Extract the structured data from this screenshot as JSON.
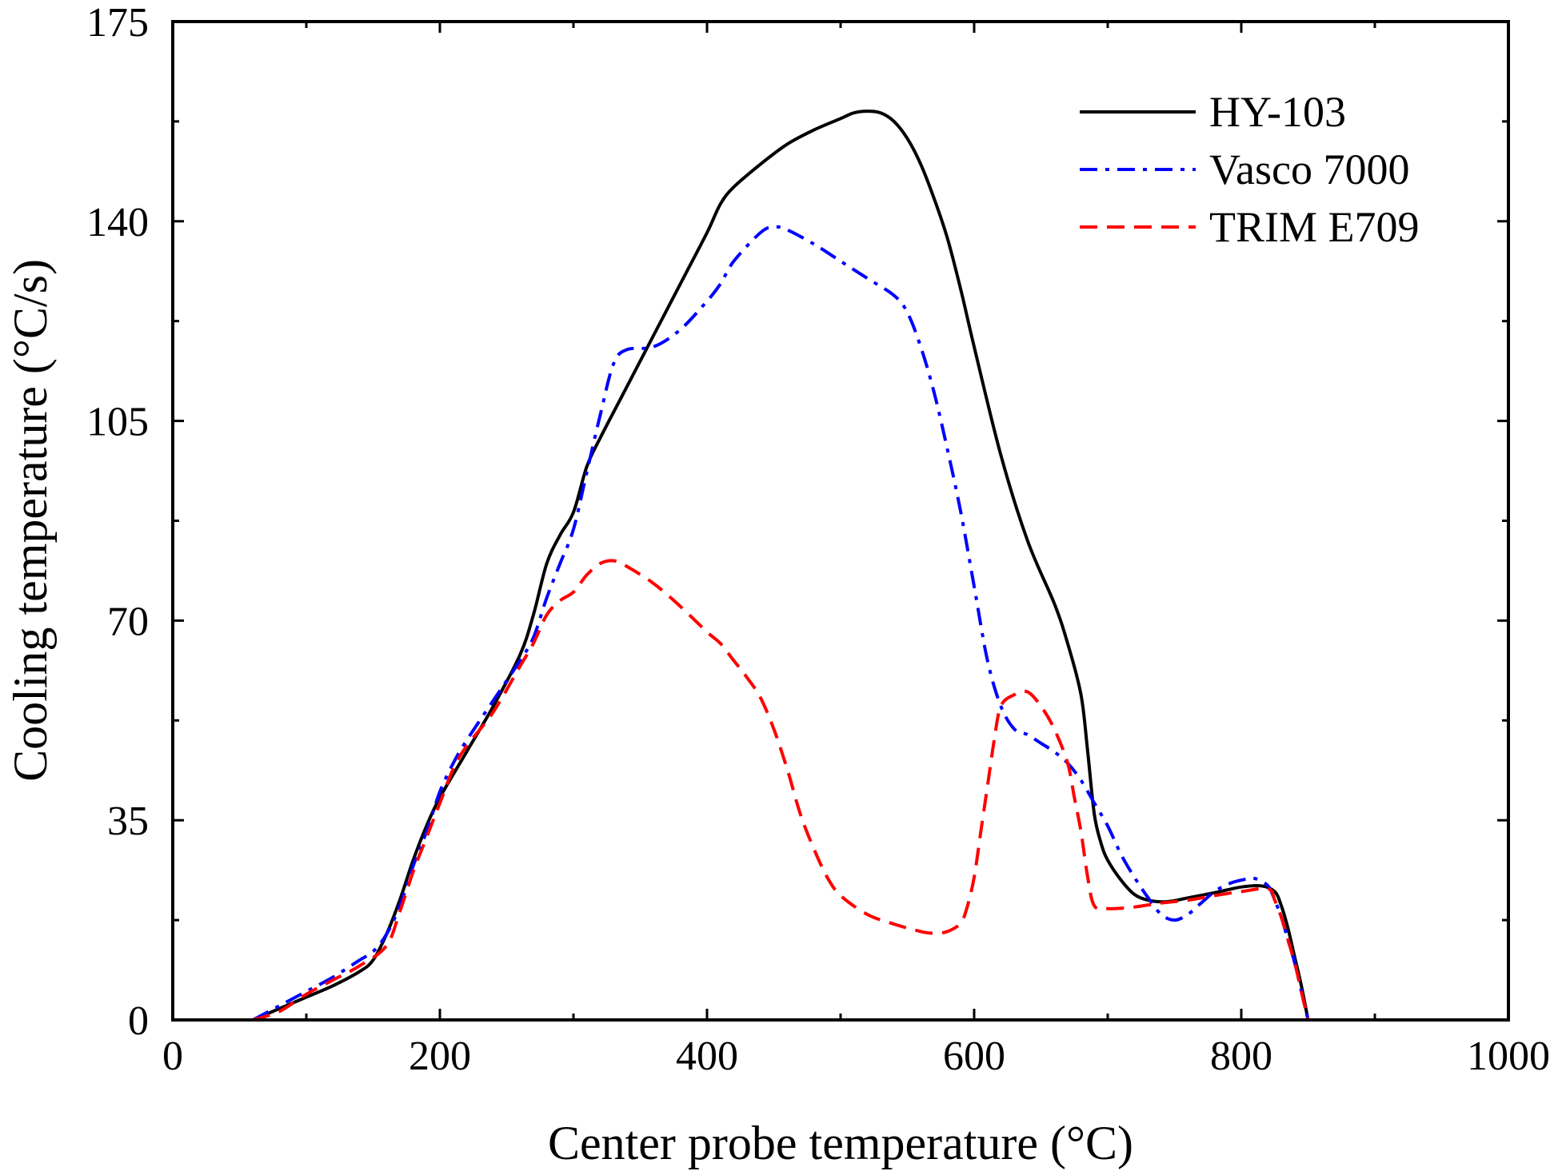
{
  "chart_data": {
    "type": "line",
    "title": "",
    "xlabel": "Center probe temperature  (°C)",
    "ylabel": "Cooling temperature  (°C/s)",
    "xlim": [
      0,
      1000
    ],
    "ylim": [
      0,
      175
    ],
    "xticks": [
      0,
      200,
      400,
      600,
      800,
      1000
    ],
    "yticks": [
      0,
      35,
      70,
      105,
      140,
      175
    ],
    "xtick_labels": [
      "0",
      "200",
      "400",
      "600",
      "800",
      "1000"
    ],
    "ytick_labels": [
      "0",
      "35",
      "70",
      "105",
      "140",
      "175"
    ],
    "grid": false,
    "legend_position": "top-right",
    "series": [
      {
        "name": "HY-103",
        "color": "#000000",
        "style": "solid",
        "points": [
          [
            60,
            0
          ],
          [
            80,
            2
          ],
          [
            100,
            4
          ],
          [
            120,
            6
          ],
          [
            140,
            8.5
          ],
          [
            150,
            10.5
          ],
          [
            160,
            15
          ],
          [
            170,
            21
          ],
          [
            180,
            28
          ],
          [
            190,
            34
          ],
          [
            200,
            39
          ],
          [
            220,
            47
          ],
          [
            240,
            55
          ],
          [
            260,
            64
          ],
          [
            270,
            71
          ],
          [
            280,
            80
          ],
          [
            290,
            85
          ],
          [
            300,
            89
          ],
          [
            310,
            97
          ],
          [
            320,
            102
          ],
          [
            340,
            111
          ],
          [
            360,
            120
          ],
          [
            380,
            129
          ],
          [
            400,
            138
          ],
          [
            410,
            143
          ],
          [
            420,
            146
          ],
          [
            440,
            150
          ],
          [
            460,
            153.5
          ],
          [
            480,
            156
          ],
          [
            500,
            158
          ],
          [
            510,
            159
          ],
          [
            520,
            159.3
          ],
          [
            530,
            159
          ],
          [
            540,
            157.5
          ],
          [
            550,
            154.5
          ],
          [
            560,
            150
          ],
          [
            570,
            144
          ],
          [
            580,
            137
          ],
          [
            590,
            128
          ],
          [
            600,
            118
          ],
          [
            620,
            99
          ],
          [
            640,
            84
          ],
          [
            660,
            73
          ],
          [
            670,
            66
          ],
          [
            680,
            57
          ],
          [
            685,
            47
          ],
          [
            690,
            36
          ],
          [
            695,
            31
          ],
          [
            700,
            28
          ],
          [
            710,
            24.5
          ],
          [
            720,
            22
          ],
          [
            730,
            21
          ],
          [
            740,
            20.7
          ],
          [
            750,
            20.9
          ],
          [
            760,
            21.4
          ],
          [
            780,
            22.3
          ],
          [
            800,
            23.3
          ],
          [
            815,
            23.5
          ],
          [
            825,
            22.5
          ],
          [
            830,
            20
          ],
          [
            835,
            16
          ],
          [
            840,
            11
          ],
          [
            845,
            6
          ],
          [
            850,
            0
          ]
        ]
      },
      {
        "name": "Vasco 7000",
        "color": "#0000ff",
        "style": "dashdot",
        "points": [
          [
            60,
            0
          ],
          [
            80,
            2.5
          ],
          [
            100,
            5
          ],
          [
            120,
            7.5
          ],
          [
            140,
            10.5
          ],
          [
            150,
            12
          ],
          [
            160,
            15
          ],
          [
            170,
            20
          ],
          [
            180,
            27
          ],
          [
            190,
            33
          ],
          [
            200,
            40
          ],
          [
            210,
            45
          ],
          [
            220,
            49
          ],
          [
            240,
            56
          ],
          [
            260,
            63
          ],
          [
            270,
            67
          ],
          [
            280,
            74
          ],
          [
            290,
            80
          ],
          [
            300,
            86
          ],
          [
            310,
            96
          ],
          [
            320,
            106
          ],
          [
            330,
            115
          ],
          [
            340,
            117.5
          ],
          [
            360,
            118
          ],
          [
            380,
            121
          ],
          [
            400,
            126
          ],
          [
            410,
            129
          ],
          [
            420,
            133
          ],
          [
            440,
            138
          ],
          [
            450,
            139
          ],
          [
            460,
            138.5
          ],
          [
            480,
            136
          ],
          [
            500,
            133
          ],
          [
            520,
            130
          ],
          [
            540,
            127
          ],
          [
            550,
            124
          ],
          [
            560,
            118
          ],
          [
            570,
            110
          ],
          [
            580,
            100
          ],
          [
            590,
            89
          ],
          [
            600,
            76
          ],
          [
            610,
            63
          ],
          [
            620,
            55
          ],
          [
            630,
            51
          ],
          [
            640,
            50
          ],
          [
            650,
            48.5
          ],
          [
            660,
            47
          ],
          [
            670,
            45
          ],
          [
            680,
            42
          ],
          [
            690,
            38
          ],
          [
            700,
            34
          ],
          [
            710,
            29
          ],
          [
            720,
            25
          ],
          [
            730,
            21.5
          ],
          [
            740,
            18.5
          ],
          [
            750,
            17.5
          ],
          [
            760,
            18.5
          ],
          [
            770,
            20.5
          ],
          [
            780,
            22.5
          ],
          [
            790,
            23.8
          ],
          [
            800,
            24.5
          ],
          [
            810,
            24.8
          ],
          [
            820,
            23.5
          ],
          [
            825,
            21
          ],
          [
            830,
            18
          ],
          [
            835,
            14
          ],
          [
            840,
            10
          ],
          [
            845,
            5
          ],
          [
            850,
            0
          ]
        ]
      },
      {
        "name": "TRIM E709",
        "color": "#ff0000",
        "style": "dashed",
        "points": [
          [
            60,
            0
          ],
          [
            80,
            1.5
          ],
          [
            100,
            4.5
          ],
          [
            120,
            7
          ],
          [
            140,
            9.5
          ],
          [
            160,
            13
          ],
          [
            170,
            19
          ],
          [
            180,
            26
          ],
          [
            190,
            32
          ],
          [
            200,
            38
          ],
          [
            210,
            44
          ],
          [
            220,
            48
          ],
          [
            240,
            54
          ],
          [
            260,
            62
          ],
          [
            270,
            66
          ],
          [
            280,
            71
          ],
          [
            290,
            73.5
          ],
          [
            300,
            75
          ],
          [
            310,
            78
          ],
          [
            320,
            80
          ],
          [
            330,
            80.5
          ],
          [
            340,
            79.5
          ],
          [
            360,
            76.5
          ],
          [
            380,
            72.5
          ],
          [
            400,
            68
          ],
          [
            410,
            66
          ],
          [
            420,
            63
          ],
          [
            430,
            60
          ],
          [
            440,
            56.5
          ],
          [
            450,
            51
          ],
          [
            460,
            44
          ],
          [
            470,
            36
          ],
          [
            480,
            30
          ],
          [
            490,
            25
          ],
          [
            500,
            21.8
          ],
          [
            520,
            18.5
          ],
          [
            540,
            16.8
          ],
          [
            560,
            15.5
          ],
          [
            570,
            15.2
          ],
          [
            580,
            15.5
          ],
          [
            590,
            17
          ],
          [
            595,
            20
          ],
          [
            600,
            25
          ],
          [
            605,
            33
          ],
          [
            610,
            41
          ],
          [
            615,
            49
          ],
          [
            620,
            55
          ],
          [
            630,
            57
          ],
          [
            640,
            57.5
          ],
          [
            650,
            55
          ],
          [
            660,
            51
          ],
          [
            670,
            45
          ],
          [
            675,
            39
          ],
          [
            680,
            33
          ],
          [
            685,
            25
          ],
          [
            690,
            20
          ],
          [
            700,
            19.5
          ],
          [
            720,
            19.8
          ],
          [
            740,
            20.5
          ],
          [
            760,
            21
          ],
          [
            780,
            21.8
          ],
          [
            800,
            22.5
          ],
          [
            820,
            23
          ],
          [
            825,
            21
          ],
          [
            830,
            18
          ],
          [
            835,
            14
          ],
          [
            840,
            10
          ],
          [
            845,
            5
          ],
          [
            850,
            0
          ]
        ]
      }
    ]
  }
}
